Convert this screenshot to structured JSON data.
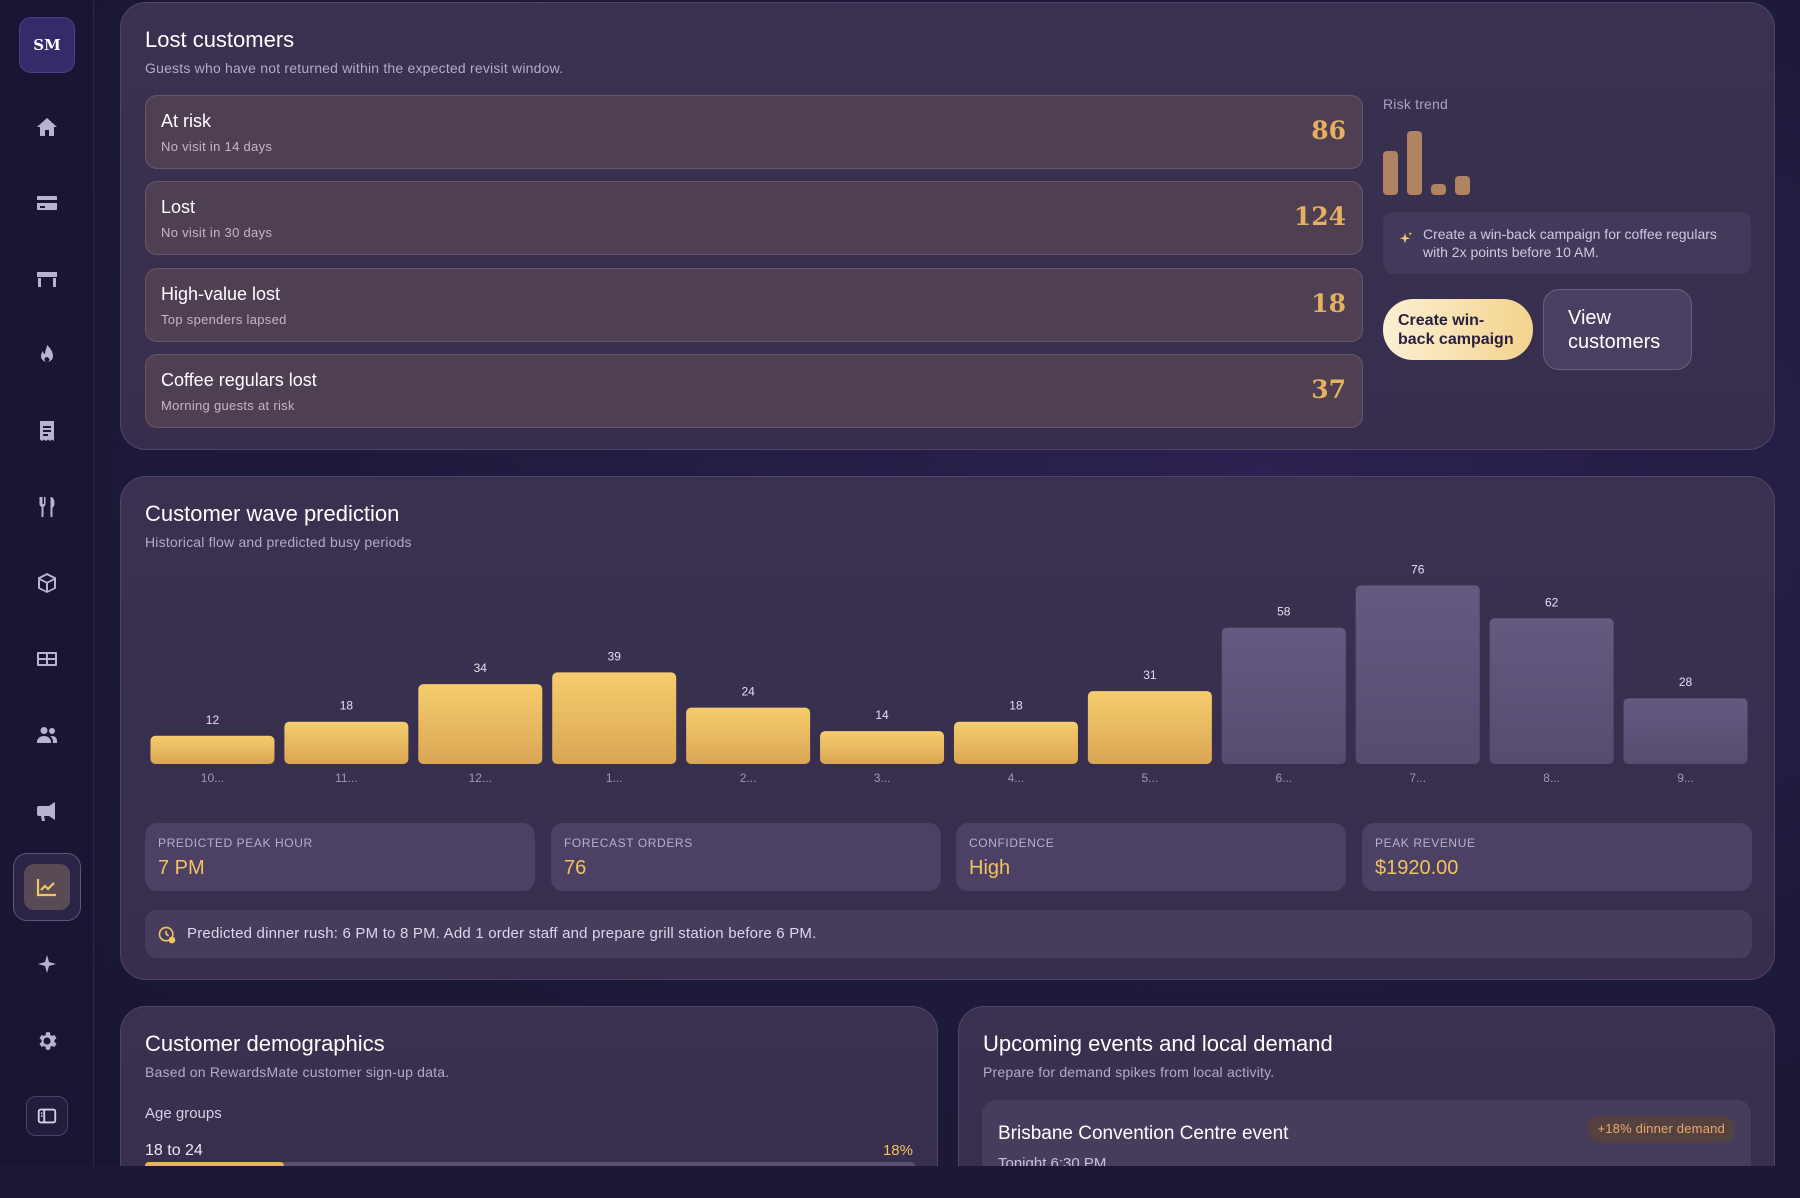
{
  "brand": {
    "initials": "SM"
  },
  "sidebar": {
    "items": [
      {
        "icon": "home-icon"
      },
      {
        "icon": "card-icon"
      },
      {
        "icon": "store-icon"
      },
      {
        "icon": "flame-icon"
      },
      {
        "icon": "receipt-icon"
      },
      {
        "icon": "utensils-icon"
      },
      {
        "icon": "box-icon"
      },
      {
        "icon": "gift-card-icon"
      },
      {
        "icon": "users-icon"
      },
      {
        "icon": "megaphone-icon"
      },
      {
        "icon": "chart-icon",
        "active": true
      },
      {
        "icon": "sparkle-icon"
      },
      {
        "icon": "gear-icon"
      },
      {
        "icon": "sidebar-toggle-icon"
      }
    ]
  },
  "lost_customers": {
    "title": "Lost customers",
    "subtitle": "Guests who have not returned within the expected revisit window.",
    "rows": [
      {
        "title": "At risk",
        "sub": "No visit in 14 days",
        "value": "86"
      },
      {
        "title": "Lost",
        "sub": "No visit in 30 days",
        "value": "124"
      },
      {
        "title": "High-value lost",
        "sub": "Top spenders lapsed",
        "value": "18"
      },
      {
        "title": "Coffee regulars lost",
        "sub": "Morning guests at risk",
        "value": "37"
      }
    ],
    "risk_trend_label": "Risk trend",
    "risk_trend_values": [
      86,
      124,
      18,
      37
    ],
    "tip": "Create a win-back campaign for coffee regulars with 2x points before 10 AM.",
    "primary_button": "Create win-back campaign",
    "secondary_button": "View customers"
  },
  "wave": {
    "title": "Customer wave prediction",
    "subtitle": "Historical flow and predicted busy periods",
    "stats": [
      {
        "label": "PREDICTED PEAK HOUR",
        "value": "7 PM"
      },
      {
        "label": "FORECAST ORDERS",
        "value": "76"
      },
      {
        "label": "CONFIDENCE",
        "value": "High"
      },
      {
        "label": "PEAK REVENUE",
        "value": "$1920.00"
      }
    ],
    "insight": "Predicted dinner rush: 6 PM to 8 PM. Add 1 order staff and prepare grill station before 6 PM."
  },
  "chart_data": {
    "type": "bar",
    "categories": [
      "10...",
      "11...",
      "12...",
      "1...",
      "2...",
      "3...",
      "4...",
      "5...",
      "6...",
      "7...",
      "8...",
      "9..."
    ],
    "values": [
      12,
      18,
      34,
      39,
      24,
      14,
      18,
      31,
      58,
      76,
      62,
      28
    ],
    "series_kind": [
      "historical",
      "historical",
      "historical",
      "historical",
      "historical",
      "historical",
      "historical",
      "historical",
      "predicted",
      "predicted",
      "predicted",
      "predicted"
    ],
    "colors": {
      "historical": "#f1c25e",
      "predicted": "#5e5478"
    },
    "ylim": [
      0,
      80
    ],
    "grid": false
  },
  "demographics": {
    "title": "Customer demographics",
    "subtitle": "Based on RewardsMate customer sign-up data.",
    "age_groups_label": "Age groups",
    "rows": [
      {
        "label": "18 to 24",
        "pct_label": "18%",
        "pct": 0.18
      }
    ]
  },
  "events": {
    "title": "Upcoming events and local demand",
    "subtitle": "Prepare for demand spikes from local activity.",
    "items": [
      {
        "title": "Brisbane Convention Centre event",
        "time": "Tonight 6:30 PM",
        "badge": "+18% dinner demand"
      }
    ]
  }
}
